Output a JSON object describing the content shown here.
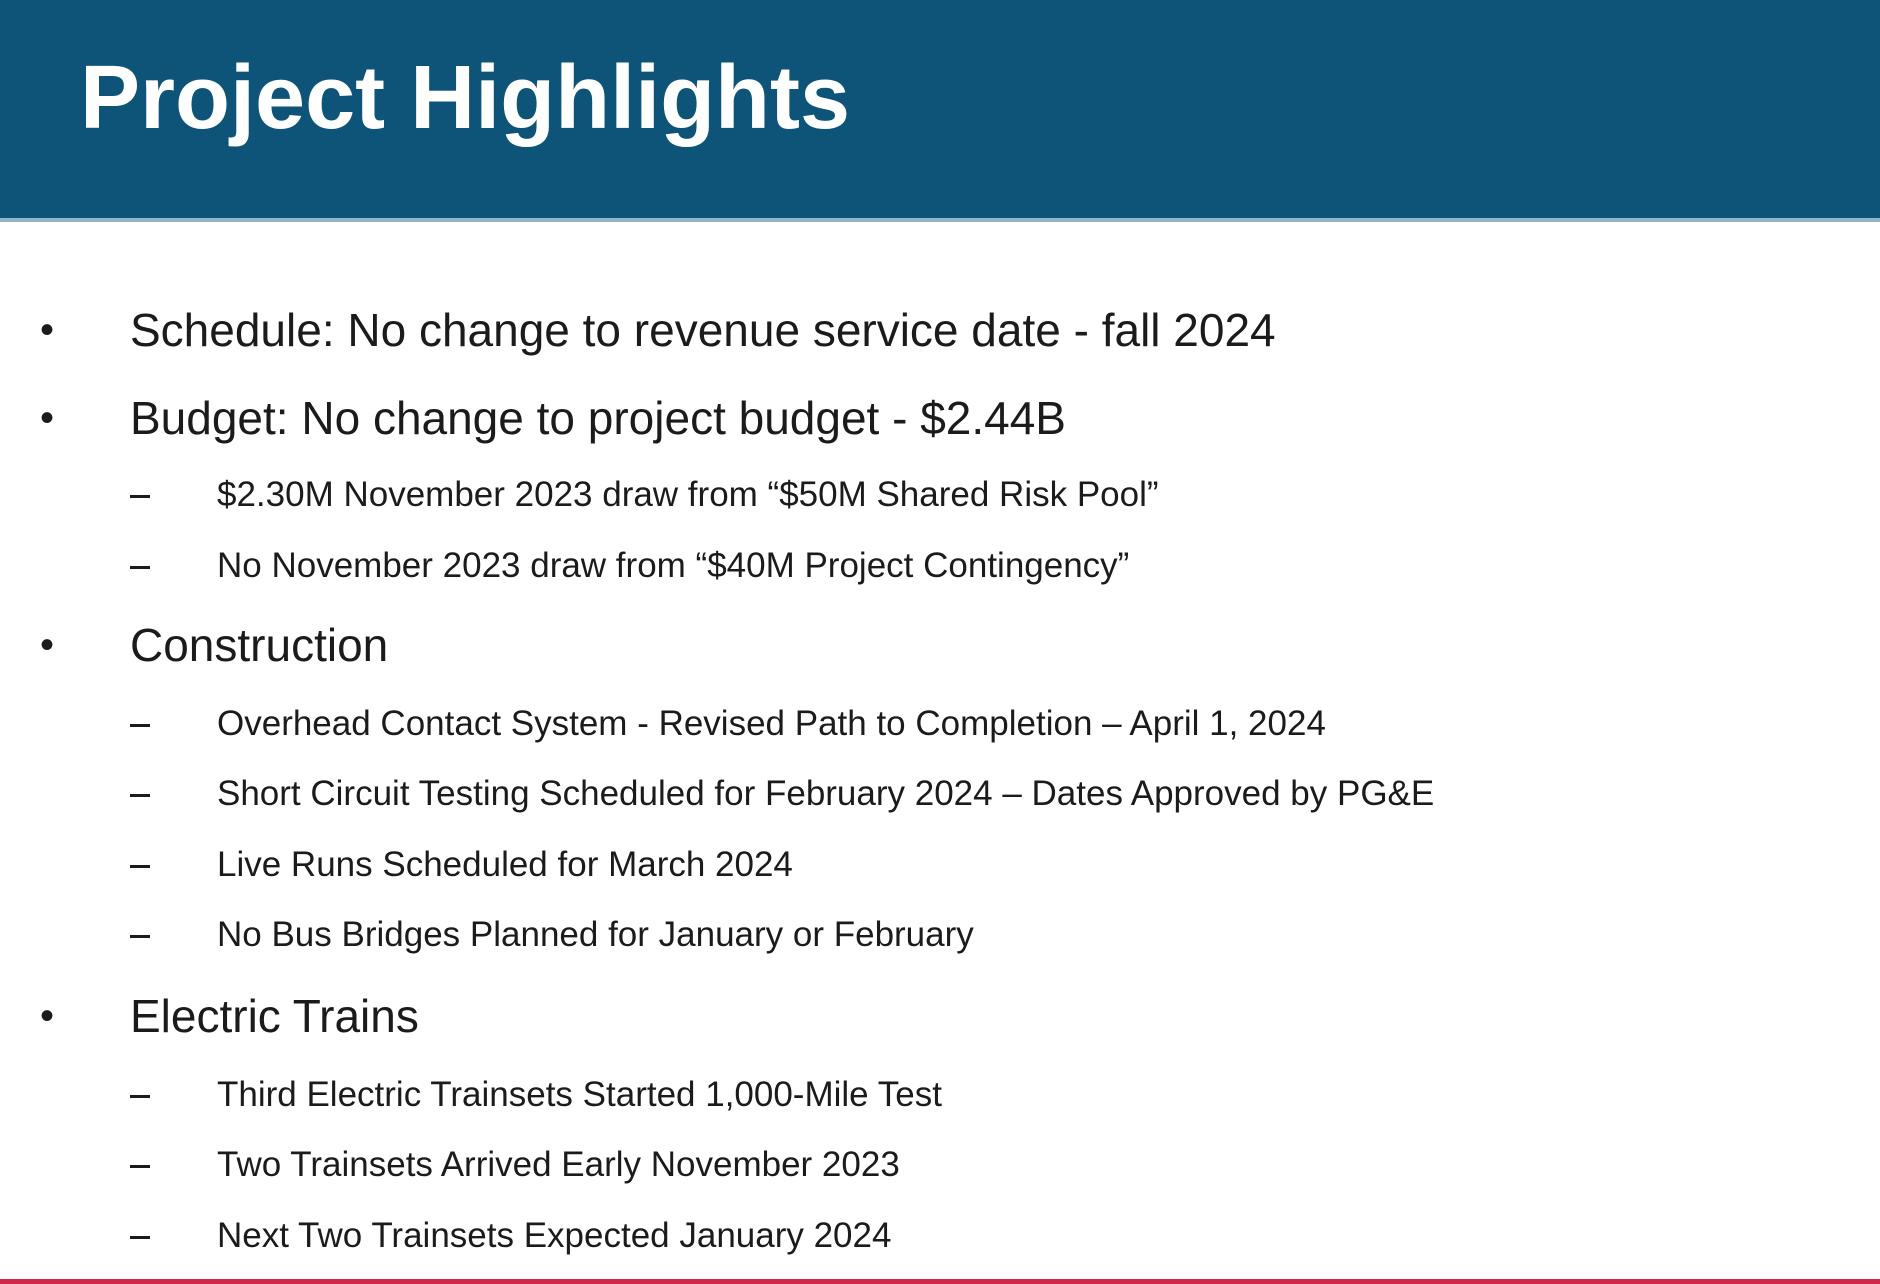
{
  "slide": {
    "title": "Project Highlights",
    "bullet_glyph": "•"
  },
  "sections": [
    {
      "text": "Schedule: No change to revenue service date - fall 2024",
      "subitems": []
    },
    {
      "text": "Budget: No change to project budget - $2.44B",
      "subitems": [
        "$2.30M November 2023 draw from “$50M Shared Risk Pool”",
        "No November 2023 draw from “$40M Project Contingency”"
      ]
    },
    {
      "text": "Construction",
      "subitems": [
        "Overhead Contact System - Revised Path to Completion – April 1, 2024",
        "Short Circuit Testing Scheduled for February 2024 – Dates Approved by PG&E",
        "Live Runs Scheduled for March 2024",
        "No Bus Bridges Planned for January or February"
      ]
    },
    {
      "text": "Electric Trains",
      "subitems": [
        "Third Electric Trainsets Started 1,000-Mile Test",
        "Two Trainsets Arrived Early November 2023",
        "Next Two Trainsets Expected January 2024"
      ]
    }
  ],
  "colors": {
    "header": "#0d5478",
    "title_text": "#ffffff",
    "body_text": "#1b1b1b",
    "footer_rule": "#d0284a"
  }
}
